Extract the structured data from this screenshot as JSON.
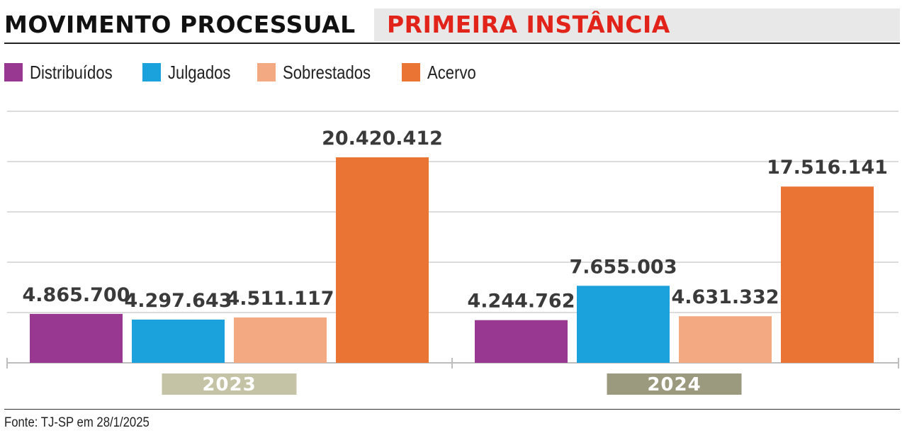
{
  "header": {
    "title": "MOVIMENTO PROCESSUAL",
    "subtitle": "PRIMEIRA INSTÂNCIA",
    "subtitle_color": "#e2231a"
  },
  "source": "Fonte: TJ-SP em 28/1/2025",
  "chart_data": {
    "type": "bar",
    "categories": [
      "2023",
      "2024"
    ],
    "category_label_colors": [
      "#c5c3a6",
      "#9c9a7e"
    ],
    "legend_position": "top-left",
    "grid": true,
    "ylim": [
      0,
      25000000
    ],
    "series": [
      {
        "name": "Distribuídos",
        "color": "#983891",
        "values": [
          4865700,
          4244762
        ],
        "labels": [
          "4.865.700",
          "4.244.762"
        ]
      },
      {
        "name": "Julgados",
        "color": "#1ba2dc",
        "values": [
          4297643,
          7655003
        ],
        "labels": [
          "4.297.643",
          "7.655.003"
        ]
      },
      {
        "name": "Sobrestados",
        "color": "#f3a982",
        "values": [
          4511117,
          4631332
        ],
        "labels": [
          "4.511.117",
          "4.631.332"
        ]
      },
      {
        "name": "Acervo",
        "color": "#ea7434",
        "values": [
          20420412,
          17516141
        ],
        "labels": [
          "20.420.412",
          "17.516.141"
        ]
      }
    ]
  }
}
